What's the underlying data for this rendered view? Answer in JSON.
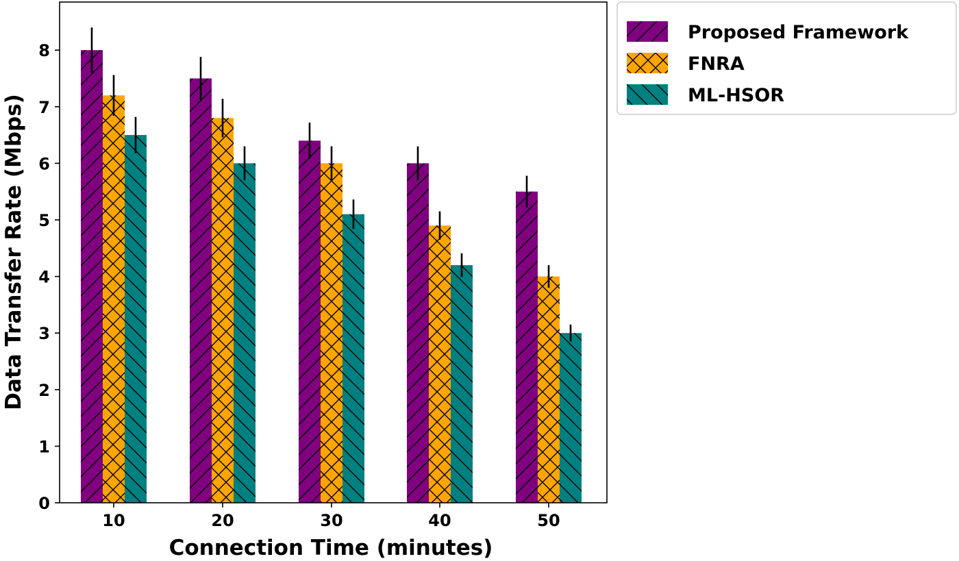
{
  "chart_data": {
    "type": "bar",
    "title": "",
    "xlabel": "Connection Time (minutes)",
    "ylabel": "Data Transfer Rate (Mbps)",
    "categories": [
      "10",
      "20",
      "30",
      "40",
      "50"
    ],
    "ylim": [
      0,
      8.5
    ],
    "yticks": [
      "0",
      "1",
      "2",
      "3",
      "4",
      "5",
      "6",
      "7",
      "8"
    ],
    "legend_position": "outside-top-right",
    "grid": false,
    "series": [
      {
        "name": "Proposed Framework",
        "color": "#800080",
        "hatch": "/",
        "values": [
          8.0,
          7.5,
          6.4,
          6.0,
          5.5
        ],
        "errors": [
          0.4,
          0.38,
          0.32,
          0.3,
          0.28
        ]
      },
      {
        "name": "FNRA",
        "color": "#FFA500",
        "hatch": "x",
        "values": [
          7.2,
          6.8,
          6.0,
          4.9,
          4.0
        ],
        "errors": [
          0.36,
          0.34,
          0.3,
          0.25,
          0.2
        ]
      },
      {
        "name": "ML-HSOR",
        "color": "#008080",
        "hatch": "\\",
        "values": [
          6.5,
          6.0,
          5.1,
          4.2,
          3.0
        ],
        "errors": [
          0.32,
          0.3,
          0.26,
          0.21,
          0.15
        ]
      }
    ]
  }
}
